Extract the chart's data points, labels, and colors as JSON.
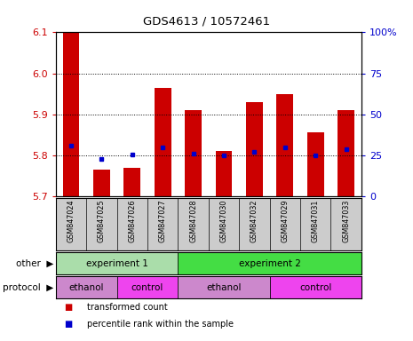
{
  "title": "GDS4613 / 10572461",
  "samples": [
    "GSM847024",
    "GSM847025",
    "GSM847026",
    "GSM847027",
    "GSM847028",
    "GSM847030",
    "GSM847032",
    "GSM847029",
    "GSM847031",
    "GSM847033"
  ],
  "bar_values": [
    6.1,
    5.765,
    5.768,
    5.965,
    5.91,
    5.81,
    5.93,
    5.95,
    5.855,
    5.91
  ],
  "dot_values": [
    5.824,
    5.79,
    5.802,
    5.818,
    5.803,
    5.8,
    5.808,
    5.82,
    5.8,
    5.815
  ],
  "ylim": [
    5.7,
    6.1
  ],
  "yticks_left": [
    5.7,
    5.8,
    5.9,
    6.0,
    6.1
  ],
  "yticks_right": [
    0,
    25,
    50,
    75,
    100
  ],
  "bar_color": "#cc0000",
  "dot_color": "#0000cc",
  "bar_bottom": 5.7,
  "groups_other": [
    {
      "label": "experiment 1",
      "start": 0,
      "end": 4,
      "color": "#aaddaa"
    },
    {
      "label": "experiment 2",
      "start": 4,
      "end": 10,
      "color": "#44dd44"
    }
  ],
  "groups_protocol": [
    {
      "label": "ethanol",
      "start": 0,
      "end": 2,
      "color": "#cc88cc"
    },
    {
      "label": "control",
      "start": 2,
      "end": 4,
      "color": "#ee44ee"
    },
    {
      "label": "ethanol",
      "start": 4,
      "end": 7,
      "color": "#cc88cc"
    },
    {
      "label": "control",
      "start": 7,
      "end": 10,
      "color": "#ee44ee"
    }
  ],
  "legend_items": [
    {
      "label": "transformed count",
      "color": "#cc0000"
    },
    {
      "label": "percentile rank within the sample",
      "color": "#0000cc"
    }
  ],
  "bg_color": "#ffffff",
  "tick_color_left": "#cc0000",
  "tick_color_right": "#0000cc",
  "sample_bg_color": "#cccccc"
}
